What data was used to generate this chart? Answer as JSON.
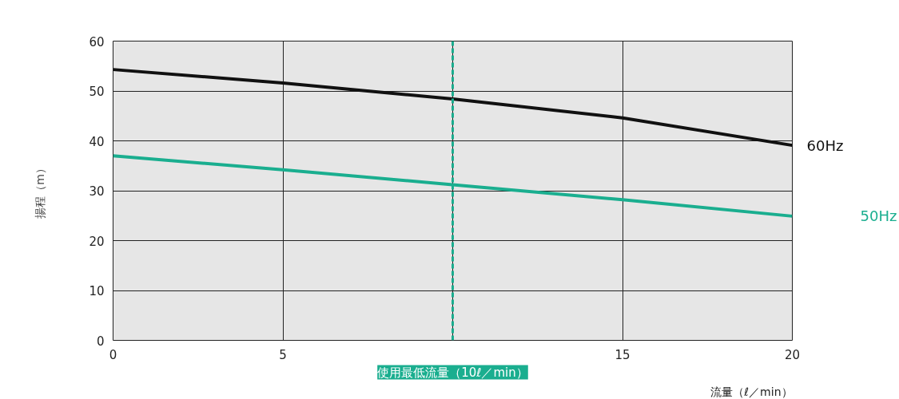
{
  "chart_data": {
    "type": "line",
    "xlabel": "流量（ℓ／min）",
    "ylabel": "揚程（m）",
    "x": [
      0,
      5,
      10,
      15,
      20
    ],
    "series": [
      {
        "name": "60Hz",
        "color": "#111111",
        "values": [
          54.3,
          51.6,
          48.4,
          44.6,
          39.1
        ]
      },
      {
        "name": "50Hz",
        "color": "#1aae8f",
        "values": [
          37.0,
          34.2,
          31.2,
          28.2,
          24.9
        ]
      }
    ],
    "xlim": [
      0,
      20
    ],
    "ylim": [
      0,
      60
    ],
    "xticks": [
      0,
      5,
      {
        "value": 10,
        "label": null
      },
      15,
      20
    ],
    "yticks": [
      0,
      10,
      20,
      30,
      40,
      50,
      60
    ],
    "grid": true,
    "marker": "none",
    "line_style": "solid",
    "legend": false,
    "ref_lines": [
      {
        "axis": "x",
        "value": 10,
        "label": "使用最低流量（10ℓ／min）",
        "color": "#1aae8f",
        "line_style": "dashed"
      }
    ]
  }
}
